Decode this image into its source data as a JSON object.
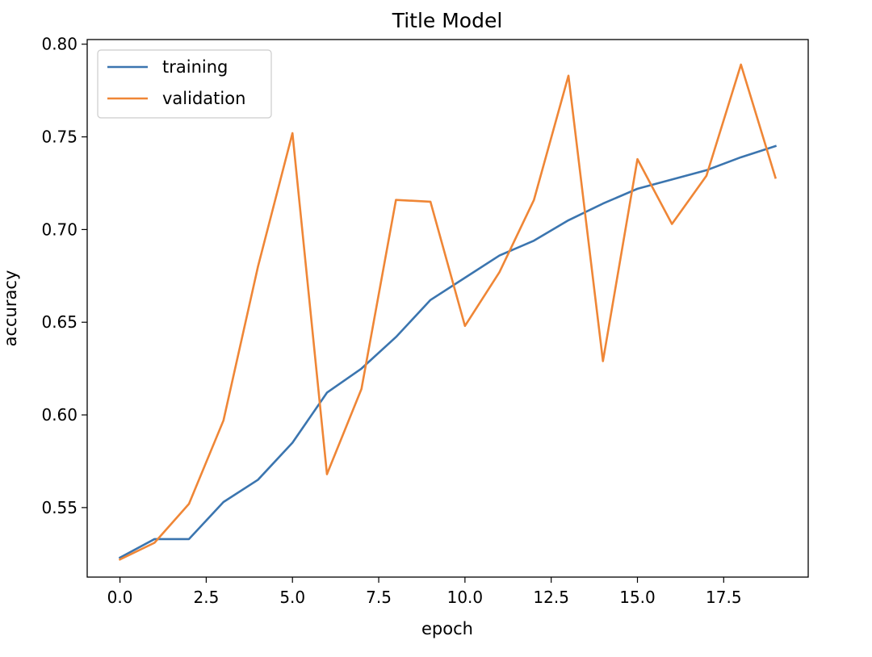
{
  "chart_data": {
    "type": "line",
    "title": "Title Model",
    "xlabel": "epoch",
    "ylabel": "accuracy",
    "xlim": [
      -0.95,
      19.95
    ],
    "ylim": [
      0.5125,
      0.8025
    ],
    "xticks": [
      0.0,
      2.5,
      5.0,
      7.5,
      10.0,
      12.5,
      15.0,
      17.5
    ],
    "xtick_labels": [
      "0.0",
      "2.5",
      "5.0",
      "7.5",
      "10.0",
      "12.5",
      "15.0",
      "17.5"
    ],
    "yticks": [
      0.55,
      0.6,
      0.65,
      0.7,
      0.75,
      0.8
    ],
    "ytick_labels": [
      "0.55",
      "0.60",
      "0.65",
      "0.70",
      "0.75",
      "0.80"
    ],
    "grid": false,
    "legend_position": "top-left",
    "x": [
      0,
      1,
      2,
      3,
      4,
      5,
      6,
      7,
      8,
      9,
      10,
      11,
      12,
      13,
      14,
      15,
      16,
      17,
      18,
      19
    ],
    "series": [
      {
        "name": "training",
        "color": "#3b75af",
        "values": [
          0.523,
          0.533,
          0.533,
          0.553,
          0.565,
          0.585,
          0.612,
          0.625,
          0.642,
          0.662,
          0.674,
          0.686,
          0.694,
          0.705,
          0.714,
          0.722,
          0.727,
          0.732,
          0.739,
          0.745
        ]
      },
      {
        "name": "validation",
        "color": "#ef8636",
        "values": [
          0.522,
          0.531,
          0.552,
          0.597,
          0.68,
          0.752,
          0.568,
          0.614,
          0.716,
          0.715,
          0.648,
          0.677,
          0.716,
          0.783,
          0.629,
          0.738,
          0.703,
          0.729,
          0.789,
          0.728
        ]
      }
    ]
  }
}
